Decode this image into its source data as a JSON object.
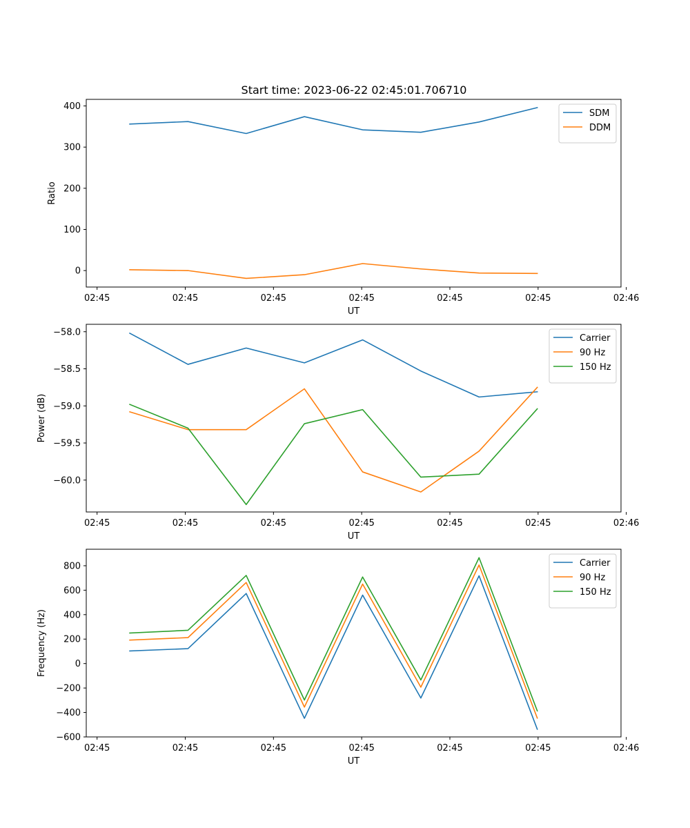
{
  "figure": {
    "title": "Start time: 2023-06-22 02:45:01.706710"
  },
  "colors": {
    "blue": "#1f77b4",
    "orange": "#ff7f0e",
    "green": "#2ca02c"
  },
  "chart_data": [
    {
      "type": "line",
      "title": "Start time: 2023-06-22 02:45:01.706710",
      "xlabel": "UT",
      "ylabel": "Ratio",
      "xlim": [
        -0.092,
        4.455
      ],
      "ylim": [
        -40,
        416
      ],
      "x": [
        0.278,
        0.773,
        1.268,
        1.763,
        2.258,
        2.753,
        3.248,
        3.743
      ],
      "xticks": [
        0,
        0.75,
        1.5,
        2.25,
        3,
        3.75,
        4.5
      ],
      "xtick_labels": [
        "02:45",
        "02:45",
        "02:45",
        "02:45",
        "02:45",
        "02:45",
        "02:46"
      ],
      "yticks": [
        0,
        100,
        200,
        300,
        400
      ],
      "ytick_labels": [
        "0",
        "100",
        "200",
        "300",
        "400"
      ],
      "legend": "top-right",
      "series": [
        {
          "name": "SDM",
          "color": "#1f77b4",
          "values": [
            356,
            362,
            333,
            374,
            342,
            336,
            361,
            396
          ]
        },
        {
          "name": "DDM",
          "color": "#ff7f0e",
          "values": [
            2,
            0,
            -19,
            -10,
            17,
            4,
            -6,
            -7
          ]
        }
      ]
    },
    {
      "type": "line",
      "title": "",
      "xlabel": "UT",
      "ylabel": "Power (dB)",
      "xlim": [
        -0.092,
        4.455
      ],
      "ylim": [
        -60.43,
        -57.9
      ],
      "x": [
        0.278,
        0.773,
        1.268,
        1.763,
        2.258,
        2.753,
        3.248,
        3.743
      ],
      "xticks": [
        0,
        0.75,
        1.5,
        2.25,
        3,
        3.75,
        4.5
      ],
      "xtick_labels": [
        "02:45",
        "02:45",
        "02:45",
        "02:45",
        "02:45",
        "02:45",
        "02:46"
      ],
      "yticks": [
        -58.0,
        -58.5,
        -59.0,
        -59.5,
        -60.0
      ],
      "ytick_labels": [
        "−58.0",
        "−58.5",
        "−59.0",
        "−59.5",
        "−60.0"
      ],
      "legend": "top-right",
      "series": [
        {
          "name": "Carrier",
          "color": "#1f77b4",
          "values": [
            -58.02,
            -58.44,
            -58.22,
            -58.42,
            -58.11,
            -58.53,
            -58.88,
            -58.81
          ]
        },
        {
          "name": "90 Hz",
          "color": "#ff7f0e",
          "values": [
            -59.08,
            -59.32,
            -59.32,
            -58.77,
            -59.89,
            -60.16,
            -59.61,
            -58.75
          ]
        },
        {
          "name": "150 Hz",
          "color": "#2ca02c",
          "values": [
            -58.98,
            -59.3,
            -60.33,
            -59.24,
            -59.05,
            -59.96,
            -59.92,
            -59.04
          ]
        }
      ]
    },
    {
      "type": "line",
      "title": "",
      "xlabel": "UT",
      "ylabel": "Frequency (Hz)",
      "xlim": [
        -0.092,
        4.455
      ],
      "ylim": [
        -600,
        935
      ],
      "x": [
        0.278,
        0.773,
        1.268,
        1.763,
        2.258,
        2.753,
        3.248,
        3.743
      ],
      "xticks": [
        0,
        0.75,
        1.5,
        2.25,
        3,
        3.75,
        4.5
      ],
      "xtick_labels": [
        "02:45",
        "02:45",
        "02:45",
        "02:45",
        "02:45",
        "02:45",
        "02:46"
      ],
      "yticks": [
        -600,
        -400,
        -200,
        0,
        200,
        400,
        600,
        800
      ],
      "ytick_labels": [
        "−600",
        "−400",
        "−200",
        "0",
        "200",
        "400",
        "600",
        "800"
      ],
      "legend": "top-right",
      "series": [
        {
          "name": "Carrier",
          "color": "#1f77b4",
          "values": [
            103,
            122,
            573,
            -448,
            560,
            -282,
            718,
            -537
          ]
        },
        {
          "name": "90 Hz",
          "color": "#ff7f0e",
          "values": [
            192,
            212,
            663,
            -356,
            650,
            -193,
            806,
            -446
          ]
        },
        {
          "name": "150 Hz",
          "color": "#2ca02c",
          "values": [
            250,
            272,
            721,
            -298,
            708,
            -134,
            866,
            -387
          ]
        }
      ]
    }
  ]
}
